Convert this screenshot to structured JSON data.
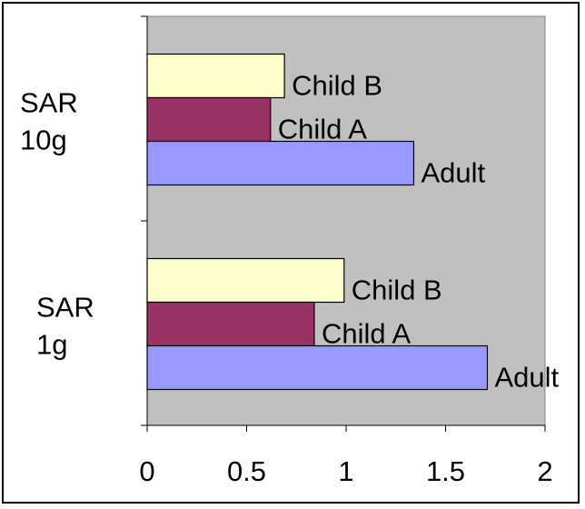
{
  "chart_data": {
    "type": "bar",
    "orientation": "horizontal",
    "categories": [
      "SAR 10g",
      "SAR 1g"
    ],
    "category_label_lines": [
      [
        "SAR",
        "10g"
      ],
      [
        "SAR",
        "1g"
      ]
    ],
    "series": [
      {
        "name": "Child B",
        "color": "#FFFFCC",
        "values": [
          0.69,
          0.99
        ]
      },
      {
        "name": "Child A",
        "color": "#993366",
        "values": [
          0.62,
          0.84
        ]
      },
      {
        "name": "Adult",
        "color": "#9999FF",
        "values": [
          1.34,
          1.71
        ]
      }
    ],
    "xlim": [
      0,
      2
    ],
    "xticks": [
      "0",
      "0.5",
      "1",
      "1.5",
      "2"
    ],
    "xtick_values": [
      0,
      0.5,
      1,
      1.5,
      2
    ],
    "plot_background": "#C0C0C0",
    "grid": false,
    "legend": "none",
    "labels_on_bars": "series name"
  }
}
